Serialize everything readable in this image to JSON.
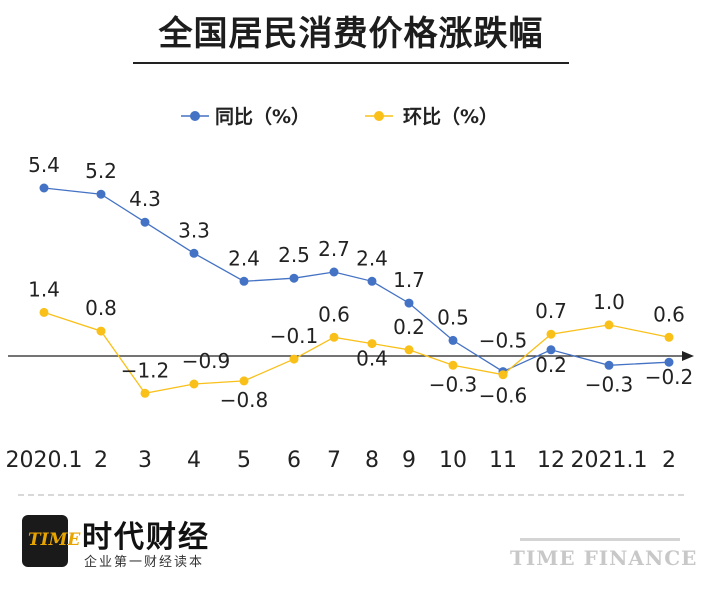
{
  "title": "全国居民消费价格涨跌幅",
  "brand": {
    "name": "时代财经",
    "slogan": "企业第一财经读本",
    "logo_mark": "TIME",
    "watermark": "时代财经",
    "english": "TIME FINANCE"
  },
  "colors": {
    "series1": "#4472c4",
    "series2": "#f9c01a",
    "axis": "#222222"
  },
  "chart_data": {
    "type": "line",
    "title": "全国居民消费价格涨跌幅",
    "categories": [
      "2020.1",
      "2",
      "3",
      "4",
      "5",
      "6",
      "7",
      "8",
      "9",
      "10",
      "11",
      "12",
      "2021.1",
      "2"
    ],
    "series": [
      {
        "name": "同比（%）",
        "values": [
          5.4,
          5.2,
          4.3,
          3.3,
          2.4,
          2.5,
          2.7,
          2.4,
          1.7,
          0.5,
          -0.5,
          0.2,
          -0.3,
          -0.2
        ],
        "labels": [
          "5.4",
          "5.2",
          "4.3",
          "3.3",
          "2.4",
          "2.5",
          "2.7",
          "2.4",
          "1.7",
          "0.5",
          "−0.5",
          "0.2",
          "−0.3",
          "−0.2"
        ]
      },
      {
        "name": "环比（%）",
        "values": [
          1.4,
          0.8,
          -1.2,
          -0.9,
          -0.8,
          -0.1,
          0.6,
          0.4,
          0.2,
          -0.3,
          -0.6,
          0.7,
          1.0,
          0.6
        ],
        "labels": [
          "1.4",
          "0.8",
          "−1.2",
          "−0.9",
          "−0.8",
          "−0.1",
          "0.6",
          "0.4",
          "0.2",
          "−0.3",
          "−0.6",
          "0.7",
          "1.0",
          "0.6"
        ]
      }
    ],
    "ylim": [
      -1.3,
      5.8
    ],
    "legend": "top-center",
    "grid": false
  }
}
